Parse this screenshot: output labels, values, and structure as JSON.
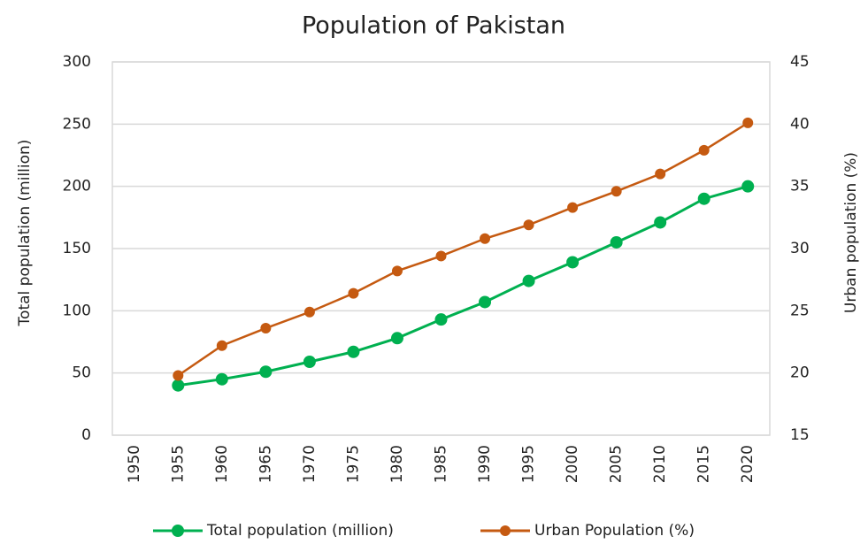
{
  "chart_data": {
    "type": "line",
    "title": "Population of Pakistan",
    "y_label": "Total population (million)",
    "y2_label": "Urban population (%)",
    "categories": [
      1950,
      1955,
      1960,
      1965,
      1970,
      1975,
      1980,
      1985,
      1990,
      1995,
      2000,
      2005,
      2010,
      2015,
      2020
    ],
    "series": [
      {
        "name": "Total population (million)",
        "color": "#00b050",
        "axis": "y",
        "values": [
          null,
          40,
          45,
          51,
          59,
          67,
          78,
          93,
          107,
          124,
          139,
          155,
          171,
          190,
          200
        ]
      },
      {
        "name": "Urban Population (%)",
        "color": "#c55a11",
        "axis": "y2",
        "values": [
          null,
          19.8,
          22.2,
          23.6,
          24.9,
          26.4,
          28.2,
          29.4,
          30.8,
          31.9,
          33.3,
          34.6,
          36.0,
          37.9,
          40.1
        ]
      }
    ],
    "ylim": [
      0,
      300
    ],
    "yticks": [
      0,
      50,
      100,
      150,
      200,
      250,
      300
    ],
    "y2lim": [
      15,
      45
    ],
    "y2ticks": [
      15,
      20,
      25,
      30,
      35,
      40,
      45
    ],
    "grid": true,
    "legend": "bottom"
  }
}
